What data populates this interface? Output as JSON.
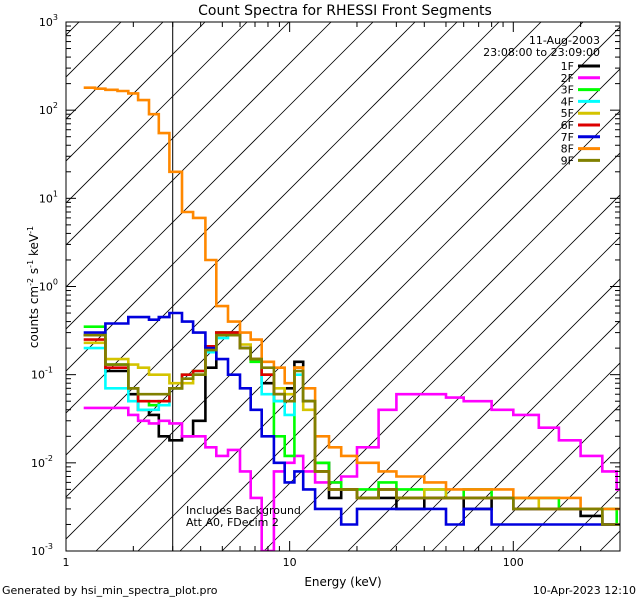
{
  "chart_data": {
    "type": "line",
    "title": "Count Spectra for RHESSI Front Segments",
    "xlabel": "Energy (keV)",
    "ylabel": "counts cm-2 s-1 keV-1",
    "xscale": "log",
    "yscale": "log",
    "xlim": [
      1,
      300
    ],
    "ylim": [
      0.001,
      1000
    ],
    "x_ticks": [
      {
        "value": 1,
        "label": "1"
      },
      {
        "value": 10,
        "label": "10"
      },
      {
        "value": 100,
        "label": "100"
      }
    ],
    "y_ticks": [
      {
        "value": 0.001,
        "base": "10",
        "exp": "-3"
      },
      {
        "value": 0.01,
        "base": "10",
        "exp": "-2"
      },
      {
        "value": 0.1,
        "base": "10",
        "exp": "-1"
      },
      {
        "value": 1,
        "base": "10",
        "exp": "0"
      },
      {
        "value": 10,
        "base": "10",
        "exp": "1"
      },
      {
        "value": 100,
        "base": "10",
        "exp": "2"
      },
      {
        "value": 1000,
        "base": "10",
        "exp": "3"
      }
    ],
    "date": "11-Aug-2003",
    "time_range": "23:08:00 to 23:09:00",
    "hatched_region_max_energy": 3,
    "annotations": [
      "Includes Background",
      "Att A0, FDecim 2"
    ],
    "series": [
      {
        "name": "1F",
        "color": "#000000",
        "x": [
          1.2,
          1.35,
          1.5,
          1.7,
          1.9,
          2.1,
          2.35,
          2.6,
          2.9,
          3.3,
          3.7,
          4.2,
          4.7,
          5.3,
          6,
          6.7,
          7.5,
          8.5,
          9.5,
          10.5,
          11.5,
          13,
          15,
          17,
          20,
          25,
          30,
          40,
          50,
          60,
          80,
          100,
          130,
          160,
          200,
          250,
          290
        ],
        "y": [
          0.28,
          0.28,
          0.11,
          0.11,
          0.06,
          0.04,
          0.035,
          0.02,
          0.018,
          0.02,
          0.03,
          0.12,
          0.3,
          0.3,
          0.2,
          0.15,
          0.08,
          0.05,
          0.07,
          0.14,
          0.05,
          0.01,
          0.004,
          0.005,
          0.004,
          0.004,
          0.003,
          0.004,
          0.004,
          0.003,
          0.004,
          0.003,
          0.003,
          0.003,
          0.0025,
          0.002,
          0.002
        ]
      },
      {
        "name": "2F",
        "color": "#ff00ff",
        "x": [
          1.2,
          1.35,
          1.5,
          1.7,
          1.9,
          2.1,
          2.35,
          2.6,
          2.9,
          3.3,
          3.7,
          4.2,
          4.7,
          5.3,
          6,
          6.7,
          7.5,
          8.5,
          9.5,
          10.5,
          11.5,
          13,
          15,
          17,
          20,
          25,
          30,
          40,
          50,
          60,
          80,
          100,
          130,
          160,
          200,
          250,
          290
        ],
        "y": [
          0.042,
          0.042,
          0.042,
          0.042,
          0.035,
          0.03,
          0.028,
          0.03,
          0.028,
          0.02,
          0.02,
          0.015,
          0.012,
          0.014,
          0.008,
          0.004,
          0.001,
          0.008,
          0.01,
          0.012,
          0.008,
          0.006,
          0.006,
          0.007,
          0.015,
          0.04,
          0.06,
          0.06,
          0.055,
          0.05,
          0.04,
          0.035,
          0.025,
          0.018,
          0.012,
          0.008,
          0.005
        ]
      },
      {
        "name": "3F",
        "color": "#00ff00",
        "x": [
          1.2,
          1.35,
          1.5,
          1.7,
          1.9,
          2.1,
          2.35,
          2.6,
          2.9,
          3.3,
          3.7,
          4.2,
          4.7,
          5.3,
          6,
          6.7,
          7.5,
          8.5,
          9.5,
          10.5,
          11.5,
          13,
          15,
          17,
          20,
          25,
          30,
          40,
          50,
          60,
          80,
          100,
          130,
          160,
          200,
          250,
          290
        ],
        "y": [
          0.35,
          0.35,
          0.13,
          0.13,
          0.07,
          0.05,
          0.045,
          0.05,
          0.07,
          0.1,
          0.11,
          0.2,
          0.3,
          0.28,
          0.2,
          0.14,
          0.1,
          0.02,
          0.012,
          0.12,
          0.05,
          0.01,
          0.006,
          0.005,
          0.005,
          0.006,
          0.005,
          0.005,
          0.004,
          0.005,
          0.004,
          0.004,
          0.004,
          0.003,
          0.003,
          0.003,
          0.002
        ]
      },
      {
        "name": "4F",
        "color": "#00ffff",
        "x": [
          1.2,
          1.35,
          1.5,
          1.7,
          1.9,
          2.1,
          2.35,
          2.6,
          2.9,
          3.3,
          3.7,
          4.2,
          4.7,
          5.3,
          6,
          6.7,
          7.5,
          8.5,
          9.5,
          10.5,
          11.5,
          13,
          15,
          17,
          20,
          25,
          30,
          40,
          50,
          60,
          80,
          100,
          130,
          160,
          200,
          250,
          290
        ],
        "y": [
          0.2,
          0.2,
          0.07,
          0.07,
          0.05,
          0.04,
          0.04,
          0.045,
          0.07,
          0.09,
          0.1,
          0.18,
          0.26,
          0.28,
          0.2,
          0.15,
          0.06,
          0.05,
          0.035,
          0.1,
          0.05,
          0.008,
          0.005,
          0.005,
          0.004,
          0.005,
          0.004,
          0.005,
          0.004,
          0.004,
          0.004,
          0.003,
          0.003,
          0.003,
          0.003,
          0.002,
          0.002
        ]
      },
      {
        "name": "5F",
        "color": "#d4c400",
        "x": [
          1.2,
          1.35,
          1.5,
          1.7,
          1.9,
          2.1,
          2.35,
          2.6,
          2.9,
          3.3,
          3.7,
          4.2,
          4.7,
          5.3,
          6,
          6.7,
          7.5,
          8.5,
          9.5,
          10.5,
          11.5,
          13,
          15,
          17,
          20,
          25,
          30,
          40,
          50,
          60,
          80,
          100,
          130,
          160,
          200,
          250,
          290
        ],
        "y": [
          0.23,
          0.23,
          0.15,
          0.15,
          0.13,
          0.12,
          0.1,
          0.1,
          0.08,
          0.08,
          0.1,
          0.2,
          0.3,
          0.28,
          0.22,
          0.15,
          0.1,
          0.07,
          0.06,
          0.12,
          0.04,
          0.008,
          0.005,
          0.005,
          0.004,
          0.005,
          0.004,
          0.005,
          0.004,
          0.004,
          0.004,
          0.004,
          0.003,
          0.003,
          0.003,
          0.002,
          0.002
        ]
      },
      {
        "name": "6F",
        "color": "#dd0000",
        "x": [
          1.2,
          1.35,
          1.5,
          1.7,
          1.9,
          2.1,
          2.35,
          2.6,
          2.9,
          3.3,
          3.7,
          4.2,
          4.7,
          5.3,
          6,
          6.7,
          7.5,
          8.5,
          9.5,
          10.5,
          11.5,
          13,
          15,
          17,
          20,
          25,
          30,
          40,
          50,
          60,
          80,
          100,
          130,
          160,
          200,
          250,
          290
        ],
        "y": [
          0.25,
          0.25,
          0.12,
          0.12,
          0.07,
          0.05,
          0.05,
          0.05,
          0.07,
          0.1,
          0.11,
          0.21,
          0.3,
          0.3,
          0.2,
          0.15,
          0.1,
          0.06,
          0.05,
          0.12,
          0.05,
          0.008,
          0.005,
          0.005,
          0.004,
          0.005,
          0.004,
          0.004,
          0.004,
          0.004,
          0.004,
          0.003,
          0.003,
          0.003,
          0.003,
          0.002,
          0.002
        ]
      },
      {
        "name": "7F",
        "color": "#0000dd",
        "x": [
          1.2,
          1.35,
          1.5,
          1.7,
          1.9,
          2.1,
          2.35,
          2.6,
          2.9,
          3.3,
          3.7,
          4.2,
          4.7,
          5.3,
          6,
          6.7,
          7.5,
          8.5,
          9.5,
          10.5,
          11.5,
          13,
          15,
          17,
          20,
          25,
          30,
          40,
          50,
          60,
          80,
          100,
          130,
          160,
          200,
          250,
          290
        ],
        "y": [
          0.3,
          0.3,
          0.38,
          0.38,
          0.45,
          0.45,
          0.42,
          0.45,
          0.5,
          0.4,
          0.3,
          0.2,
          0.15,
          0.1,
          0.07,
          0.04,
          0.02,
          0.01,
          0.006,
          0.008,
          0.005,
          0.003,
          0.003,
          0.002,
          0.003,
          0.003,
          0.003,
          0.003,
          0.002,
          0.003,
          0.002,
          0.002,
          0.002,
          0.002,
          0.002,
          0.002,
          0.002
        ]
      },
      {
        "name": "8F",
        "color": "#ff8800",
        "x": [
          1.2,
          1.35,
          1.5,
          1.7,
          1.9,
          2.1,
          2.35,
          2.6,
          2.9,
          3.3,
          3.7,
          4.2,
          4.7,
          5.3,
          6,
          6.7,
          7.5,
          8.5,
          9.5,
          10.5,
          11.5,
          13,
          15,
          17,
          20,
          25,
          30,
          40,
          50,
          60,
          80,
          100,
          130,
          160,
          200,
          250,
          290
        ],
        "y": [
          180,
          175,
          170,
          165,
          155,
          130,
          90,
          55,
          20,
          7,
          6,
          2,
          0.6,
          0.4,
          0.3,
          0.25,
          0.14,
          0.12,
          0.08,
          0.12,
          0.07,
          0.02,
          0.015,
          0.012,
          0.01,
          0.008,
          0.007,
          0.006,
          0.005,
          0.005,
          0.005,
          0.004,
          0.004,
          0.004,
          0.003,
          0.003,
          0.003
        ]
      },
      {
        "name": "9F",
        "color": "#808000",
        "x": [
          1.2,
          1.35,
          1.5,
          1.7,
          1.9,
          2.1,
          2.35,
          2.6,
          2.9,
          3.3,
          3.7,
          4.2,
          4.7,
          5.3,
          6,
          6.7,
          7.5,
          8.5,
          9.5,
          10.5,
          11.5,
          13,
          15,
          17,
          20,
          25,
          30,
          40,
          50,
          60,
          80,
          100,
          130,
          160,
          200,
          250,
          290
        ],
        "y": [
          0.28,
          0.28,
          0.13,
          0.13,
          0.07,
          0.06,
          0.06,
          0.06,
          0.07,
          0.09,
          0.1,
          0.19,
          0.28,
          0.28,
          0.2,
          0.15,
          0.12,
          0.06,
          0.05,
          0.11,
          0.05,
          0.008,
          0.005,
          0.005,
          0.004,
          0.005,
          0.004,
          0.004,
          0.004,
          0.004,
          0.004,
          0.003,
          0.003,
          0.003,
          0.003,
          0.002,
          0.002
        ]
      }
    ]
  },
  "footer": {
    "generated_by": "Generated by hsi_min_spectra_plot.pro",
    "timestamp": "10-Apr-2023 12:10"
  }
}
